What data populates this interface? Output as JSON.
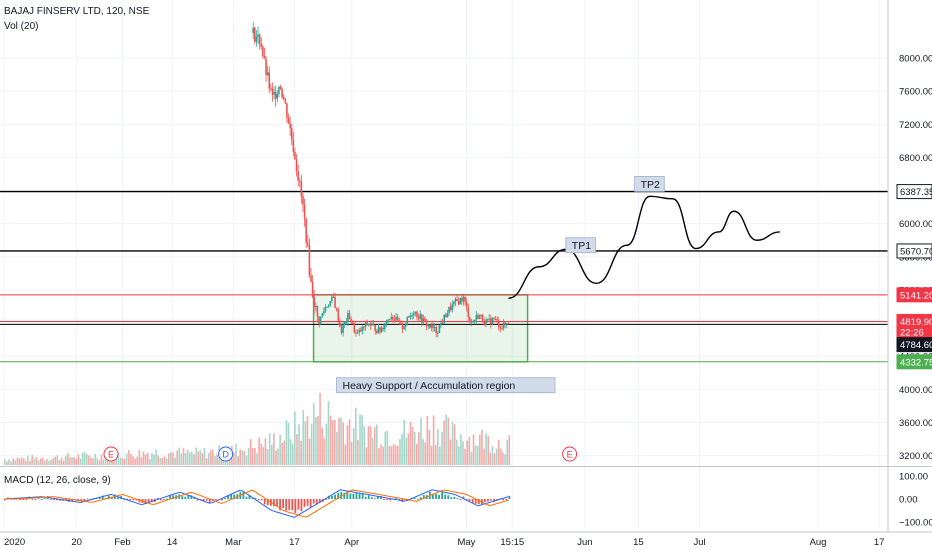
{
  "legend": {
    "symbol": "BAJAJ FINSERV LTD, 120, NSE",
    "volume": "Vol (20)",
    "macd": "MACD (12, 26, close, 9)"
  },
  "colors": {
    "up": "#26a69a",
    "down": "#ef5350",
    "up_vol": "#a5d6c8",
    "down_vol": "#f7a9a7",
    "support_box": "#4caf50",
    "resistance_line": "#f23645",
    "target_line": "#000000",
    "macd_line": "#2962ff",
    "signal_line": "#ff6d00",
    "label_bg": "#d1dbe9",
    "grid": "#f0f3fa"
  },
  "chart_data": {
    "type": "candlestick",
    "symbol": "BAJAJ FINSERV LTD",
    "interval": "120",
    "exchange": "NSE",
    "x_axis": {
      "ticks": [
        {
          "label": "2020",
          "day": 0
        },
        {
          "label": "20",
          "day": 19
        },
        {
          "label": "Feb",
          "day": 31
        },
        {
          "label": "14",
          "day": 44
        },
        {
          "label": "Mar",
          "day": 60
        },
        {
          "label": "17",
          "day": 76
        },
        {
          "label": "Apr",
          "day": 91
        },
        {
          "label": "May",
          "day": 121
        },
        {
          "label": "15:15",
          "day": 133
        },
        {
          "label": "Jun",
          "day": 152
        },
        {
          "label": "15",
          "day": 166
        },
        {
          "label": "Jul",
          "day": 182
        },
        {
          "label": "Aug",
          "day": 213
        },
        {
          "label": "17",
          "day": 229
        }
      ],
      "highlight_index": 8
    },
    "price_axis": {
      "ticks": [
        3200,
        3600,
        4000,
        4400,
        4800,
        5200,
        5600,
        6000,
        6400,
        6800,
        7200,
        7600,
        8000
      ],
      "labels": [
        "3200.00",
        "3600.00",
        "4000.00",
        "4400.00",
        "4800.00",
        "5200.00",
        "5600.00",
        "6000.00",
        "6400.00",
        "6800.00",
        "7200.00",
        "7600.00",
        "8000.00"
      ]
    },
    "price_tags": [
      {
        "label": "6387.35",
        "value": 6387.35,
        "style": "black"
      },
      {
        "label": "5670.70",
        "value": 5670.7,
        "style": "black"
      },
      {
        "label": "5141.20",
        "value": 5141.2,
        "style": "red"
      },
      {
        "label": "4819.90",
        "value": 4819.9,
        "style": "red"
      },
      {
        "label": "22:26",
        "value": 4690,
        "style": "red"
      },
      {
        "label": "4784.60",
        "value": 4784.6,
        "style": "dark",
        "draw_at": 4540
      },
      {
        "label": "4332.75",
        "value": 4332.75,
        "style": "green"
      }
    ],
    "horizontal_lines": [
      {
        "value": 6387.35,
        "color": "#000000"
      },
      {
        "value": 5670.7,
        "color": "#000000"
      },
      {
        "value": 5141.2,
        "color": "#f23645"
      },
      {
        "value": 4819.9,
        "color": "#f23645"
      },
      {
        "value": 4784.6,
        "color": "#000000"
      },
      {
        "value": 4332.75,
        "color": "#4caf50"
      }
    ],
    "support_zone": {
      "day_start": 81,
      "day_end": 137,
      "price_low": 4332.75,
      "price_high": 5141.2
    },
    "annotations": [
      {
        "text": "Heavy Support / Accumulation region",
        "day": 87,
        "price": 4050
      },
      {
        "text": "TP1",
        "day": 147,
        "price": 5740
      },
      {
        "text": "TP2",
        "day": 165,
        "price": 6480
      }
    ],
    "projection_path": [
      [
        132,
        5100
      ],
      [
        140,
        5480
      ],
      [
        147,
        5690
      ],
      [
        155,
        5280
      ],
      [
        163,
        5740
      ],
      [
        169,
        6330
      ],
      [
        175,
        6300
      ],
      [
        181,
        5700
      ],
      [
        187,
        5900
      ],
      [
        191,
        6150
      ],
      [
        197,
        5800
      ],
      [
        203,
        5900
      ]
    ],
    "close_path": [
      [
        65,
        8300
      ],
      [
        67,
        8200
      ],
      [
        68,
        7900
      ],
      [
        70,
        7500
      ],
      [
        72,
        7700
      ],
      [
        74,
        7300
      ],
      [
        76,
        6800
      ],
      [
        78,
        6200
      ],
      [
        79,
        5800
      ],
      [
        80,
        5300
      ],
      [
        82,
        4800
      ],
      [
        84,
        5000
      ],
      [
        86,
        5100
      ],
      [
        88,
        4700
      ],
      [
        90,
        4900
      ],
      [
        92,
        4650
      ],
      [
        95,
        4800
      ],
      [
        98,
        4700
      ],
      [
        101,
        4900
      ],
      [
        104,
        4750
      ],
      [
        107,
        4950
      ],
      [
        110,
        4800
      ],
      [
        113,
        4700
      ],
      [
        116,
        4950
      ],
      [
        118,
        5050
      ],
      [
        120,
        5100
      ],
      [
        122,
        4800
      ],
      [
        124,
        4900
      ],
      [
        126,
        4800
      ],
      [
        128,
        4850
      ],
      [
        130,
        4750
      ],
      [
        132,
        4819.9
      ]
    ],
    "volume_profile": [
      [
        0,
        0.1
      ],
      [
        10,
        0.12
      ],
      [
        20,
        0.15
      ],
      [
        30,
        0.18
      ],
      [
        40,
        0.22
      ],
      [
        50,
        0.2
      ],
      [
        60,
        0.25
      ],
      [
        70,
        0.4
      ],
      [
        78,
        0.7
      ],
      [
        82,
        0.9
      ],
      [
        88,
        0.75
      ],
      [
        95,
        0.6
      ],
      [
        105,
        0.55
      ],
      [
        112,
        0.7
      ],
      [
        118,
        0.5
      ],
      [
        125,
        0.45
      ],
      [
        132,
        0.35
      ]
    ],
    "macd_axis": {
      "ticks": [
        100,
        0,
        -100
      ],
      "labels": [
        "100.00",
        "0.00",
        "−100.00"
      ]
    },
    "macd_path": [
      [
        0,
        0
      ],
      [
        10,
        10
      ],
      [
        20,
        -15
      ],
      [
        28,
        20
      ],
      [
        36,
        -25
      ],
      [
        46,
        30
      ],
      [
        54,
        -20
      ],
      [
        62,
        40
      ],
      [
        70,
        -50
      ],
      [
        76,
        -80
      ],
      [
        82,
        -20
      ],
      [
        88,
        40
      ],
      [
        95,
        20
      ],
      [
        105,
        -10
      ],
      [
        112,
        40
      ],
      [
        118,
        20
      ],
      [
        124,
        -30
      ],
      [
        132,
        10
      ]
    ],
    "events": [
      {
        "label": "E",
        "day": 28
      },
      {
        "label": "D",
        "day": 58
      },
      {
        "label": "E",
        "day": 148
      }
    ]
  }
}
